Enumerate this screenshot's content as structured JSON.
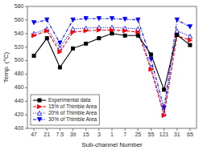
{
  "chart_data": {
    "type": "line",
    "xlabel": "Sub-channel Number",
    "ylabel": "Temp. (°C)",
    "categories": [
      "47",
      "21",
      "7.5",
      "39",
      "15",
      "3",
      "1",
      "7",
      "25",
      "55",
      "121",
      "31",
      "65"
    ],
    "series": [
      {
        "name": "Experimental data",
        "color": "black",
        "marker": "square",
        "line_style": "solid",
        "values": [
          507,
          533,
          490,
          518,
          525,
          533,
          540,
          537,
          537,
          509,
          457,
          538,
          523
        ]
      },
      {
        "name": "15% of Thimble Area",
        "color": "red",
        "marker": "triangle-right",
        "line_style": "dashed",
        "values": [
          537,
          544,
          513,
          542,
          544,
          545,
          545,
          544,
          542,
          487,
          419,
          537,
          530
        ]
      },
      {
        "name": "20% of Thimble Area",
        "color": "blue",
        "marker": "triangle-up-open",
        "line_style": "dotted",
        "values": [
          540,
          547,
          519,
          547,
          548,
          549,
          549,
          548,
          547,
          490,
          422,
          544,
          536
        ]
      },
      {
        "name": "30% of Thimble Area",
        "color": "blue",
        "marker": "triangle-down",
        "line_style": "dash-dot",
        "values": [
          556,
          560,
          526,
          560,
          562,
          562,
          562,
          561,
          560,
          502,
          430,
          560,
          550
        ]
      }
    ],
    "ylim": [
      400,
      580
    ],
    "yticks": [
      400,
      420,
      440,
      460,
      480,
      500,
      520,
      540,
      560,
      580
    ],
    "grid": false,
    "legend": "lower left"
  }
}
